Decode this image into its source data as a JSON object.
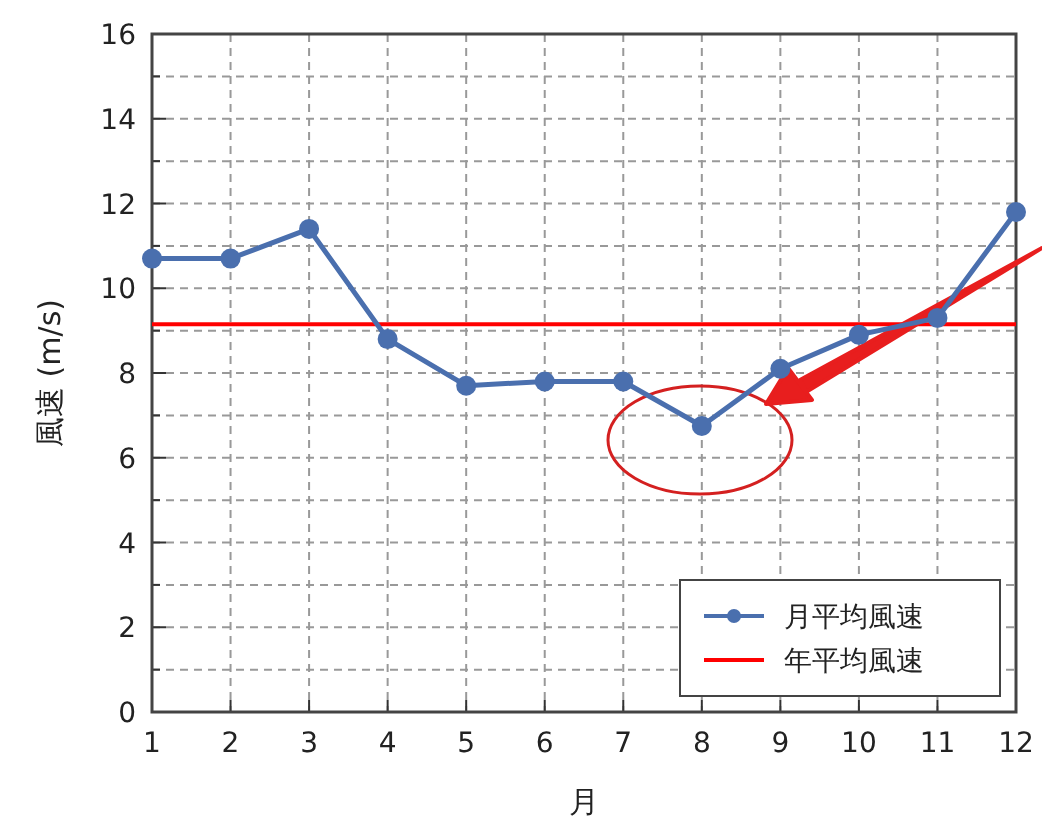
{
  "chart_data": {
    "type": "line",
    "xlabel": "月",
    "ylabel": "風速 (m/s)",
    "x": [
      1,
      2,
      3,
      4,
      5,
      6,
      7,
      8,
      9,
      10,
      11,
      12
    ],
    "series": [
      {
        "name": "月平均風速",
        "color": "#4a6fae",
        "values": [
          10.7,
          10.7,
          11.4,
          8.8,
          7.7,
          7.8,
          7.8,
          6.75,
          8.1,
          8.9,
          9.3,
          11.8
        ]
      }
    ],
    "ref_lines": [
      {
        "axis": "y",
        "value": 9.15,
        "label": "年平均風速",
        "color": "#ff0000"
      }
    ],
    "xlim": [
      1,
      12
    ],
    "xticks": [
      1,
      2,
      3,
      4,
      5,
      6,
      7,
      8,
      9,
      10,
      11,
      12
    ],
    "ylim": [
      0,
      16
    ],
    "yticks": [
      0,
      {
        "value": 1,
        "label": null
      },
      2,
      {
        "value": 3,
        "label": null
      },
      4,
      {
        "value": 5,
        "label": null
      },
      6,
      {
        "value": 7,
        "label": null
      },
      8,
      {
        "value": 9,
        "label": null
      },
      10,
      {
        "value": 11,
        "label": null
      },
      12,
      {
        "value": 13,
        "label": null
      },
      14,
      {
        "value": 15,
        "label": null
      },
      16
    ],
    "grid": true,
    "legend": "bottom right",
    "marker": "circle",
    "line_style": "solid"
  }
}
